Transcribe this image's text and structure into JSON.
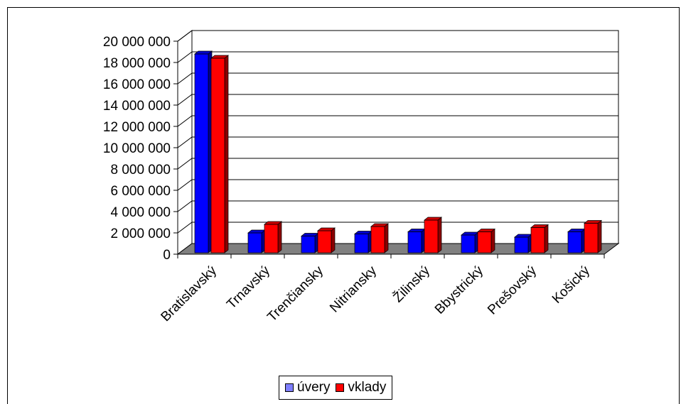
{
  "chart_data": {
    "type": "bar",
    "categories": [
      "Bratislavský",
      "Trnavský",
      "Trenčiansky",
      "Nitriansky",
      "Žilinský",
      "Bbystrický",
      "Prešovský",
      "Košický"
    ],
    "series": [
      {
        "name": "úvery",
        "color": "#0000ff",
        "values": [
          18800000,
          2000000,
          1700000,
          1900000,
          2100000,
          1800000,
          1600000,
          2100000
        ]
      },
      {
        "name": "vklady",
        "color": "#ff0000",
        "values": [
          18400000,
          2800000,
          2200000,
          2600000,
          3200000,
          2100000,
          2500000,
          2900000
        ]
      }
    ],
    "ylim": [
      0,
      20000000
    ],
    "yticks": [
      "0",
      "2 000 000",
      "4 000 000",
      "6 000 000",
      "8 000 000",
      "10 000 000",
      "12 000 000",
      "14 000 000",
      "16 000 000",
      "18 000 000",
      "20 000 000"
    ],
    "grid": true,
    "legend_position": "bottom",
    "style": "3d-clustered-bar"
  }
}
